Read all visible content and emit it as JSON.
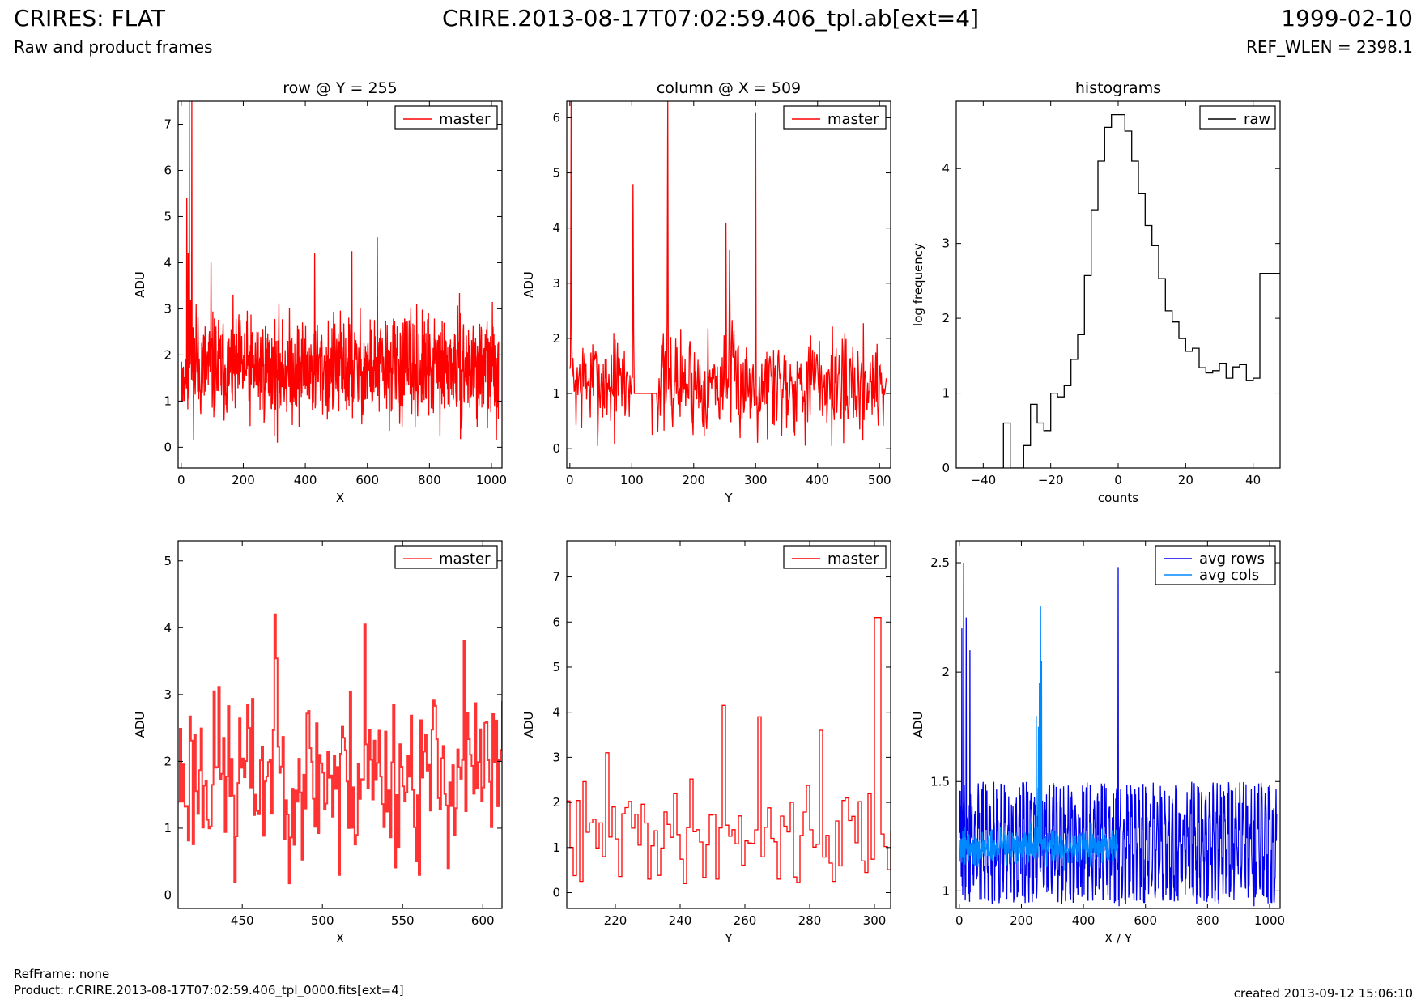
{
  "header": {
    "title": "CRIRES: FLAT",
    "subtitle": "Raw and product frames",
    "filename": "CRIRE.2013-08-17T07:02:59.406_tpl.ab[ext=4]",
    "date": "1999-02-10",
    "ref_wlen": "REF_WLEN = 2398.1"
  },
  "footer": {
    "refframe": "RefFrame: none",
    "product": "Product: r.CRIRE.2013-08-17T07:02:59.406_tpl_0000.fits[ext=4]",
    "created": "created 2013-09-12 15:06:10"
  },
  "colors": {
    "master": "#ff0000",
    "master_zoom": "#ff3333",
    "raw": "#000000",
    "avg_rows": "#0000ee",
    "avg_cols": "#0088ff"
  },
  "chart_data": [
    {
      "id": "p1",
      "type": "line",
      "title": "row @ Y = 255",
      "xlabel": "X",
      "ylabel": "ADU",
      "xlim": [
        -10,
        1034
      ],
      "ylim": [
        -0.45,
        7.5
      ],
      "xticks": [
        0,
        200,
        400,
        600,
        800,
        1000
      ],
      "yticks": [
        0,
        1,
        2,
        3,
        4,
        5,
        6,
        7
      ],
      "legend": "top-right",
      "series": [
        {
          "name": "master",
          "color": "#ff0000",
          "gen": {
            "x0": 0,
            "x1": 1023,
            "n": 1024,
            "base": 1.7,
            "amp": 0.9,
            "seed": 11,
            "spikes": [
              [
                3,
                1.0
              ],
              [
                6,
                1.0
              ],
              [
                10,
                1.0
              ],
              [
                14,
                1.9
              ],
              [
                18,
                5.4
              ],
              [
                22,
                4.2
              ],
              [
                26,
                7.5
              ],
              [
                30,
                3.2
              ],
              [
                34,
                7.5
              ],
              [
                38,
                2.6
              ],
              [
                48,
                3.1
              ],
              [
                96,
                4.0
              ],
              [
                310,
                0.1
              ],
              [
                430,
                4.2
              ],
              [
                550,
                4.25
              ],
              [
                632,
                4.55
              ],
              [
                1016,
                0.15
              ]
            ]
          }
        }
      ]
    },
    {
      "id": "p2",
      "type": "line",
      "title": "column @ X = 509",
      "xlabel": "Y",
      "ylabel": "ADU",
      "xlim": [
        -5,
        518
      ],
      "ylim": [
        -0.35,
        6.3
      ],
      "xticks": [
        0,
        100,
        200,
        300,
        400,
        500
      ],
      "yticks": [
        0,
        1,
        2,
        3,
        4,
        5,
        6
      ],
      "legend": "top-right",
      "series": [
        {
          "name": "master",
          "color": "#ff0000",
          "gen": {
            "x0": 0,
            "x1": 511,
            "n": 512,
            "base": 1.2,
            "amp": 0.75,
            "seed": 7,
            "spikes": [
              [
                2,
                6.3
              ],
              [
                102,
                4.8
              ],
              [
                158,
                6.3
              ],
              [
                300,
                6.1
              ],
              [
                252,
                4.1
              ],
              [
                258,
                3.6
              ],
              [
                133,
                0.25
              ],
              [
                442,
                0.1
              ],
              [
                468,
                0.35
              ]
            ],
            "flat": [
              [
                104,
                140,
                1.0
              ]
            ]
          }
        }
      ]
    },
    {
      "id": "p3",
      "type": "line",
      "title": "histograms",
      "xlabel": "counts",
      "ylabel": "log frequency",
      "xlim": [
        -48,
        48
      ],
      "ylim": [
        0,
        4.9
      ],
      "xticks": [
        -40,
        -20,
        0,
        20,
        40
      ],
      "yticks": [
        0,
        1,
        2,
        3,
        4
      ],
      "legend": "top-right",
      "series": [
        {
          "name": "raw",
          "color": "#000000",
          "step": true,
          "x": [
            -48,
            -36,
            -34,
            -32,
            -30,
            -28,
            -26,
            -24,
            -22,
            -20,
            -18,
            -16,
            -14,
            -12,
            -10,
            -8,
            -6,
            -4,
            -2,
            0,
            2,
            4,
            6,
            8,
            10,
            12,
            14,
            16,
            18,
            20,
            22,
            24,
            26,
            28,
            30,
            32,
            34,
            36,
            38,
            40,
            42,
            44,
            46
          ],
          "y": [
            0,
            0,
            0.6,
            0,
            0,
            0.3,
            0.85,
            0.6,
            0.5,
            1.0,
            0.95,
            1.1,
            1.45,
            1.78,
            2.57,
            3.45,
            4.1,
            4.55,
            4.72,
            4.72,
            4.5,
            4.1,
            3.67,
            3.24,
            2.97,
            2.53,
            2.1,
            1.95,
            1.73,
            1.56,
            1.6,
            1.34,
            1.27,
            1.3,
            1.4,
            1.2,
            1.35,
            1.38,
            1.17,
            1.2,
            2.6,
            2.6,
            2.6
          ]
        }
      ]
    },
    {
      "id": "p4",
      "type": "line",
      "title": "",
      "xlabel": "X",
      "ylabel": "ADU",
      "xlim": [
        410,
        612
      ],
      "ylim": [
        -0.2,
        5.3
      ],
      "xticks": [
        450,
        500,
        550,
        600
      ],
      "yticks": [
        0,
        1,
        2,
        3,
        4,
        5
      ],
      "legend": "top-right",
      "series": [
        {
          "name": "master",
          "color": "#ff3333",
          "step": true,
          "gen": {
            "x0": 410,
            "x1": 612,
            "n": 203,
            "base": 1.8,
            "amp": 1.0,
            "seed": 23,
            "spikes": [
              [
                470,
                4.2
              ],
              [
                526,
                4.05
              ],
              [
                588,
                3.8
              ],
              [
                432,
                3.05
              ],
              [
                445,
                0.2
              ],
              [
                510,
                0.3
              ],
              [
                560,
                0.3
              ]
            ]
          }
        }
      ]
    },
    {
      "id": "p5",
      "type": "line",
      "title": "",
      "xlabel": "Y",
      "ylabel": "ADU",
      "xlim": [
        205,
        305
      ],
      "ylim": [
        -0.35,
        7.8
      ],
      "xticks": [
        220,
        240,
        260,
        280,
        300
      ],
      "yticks": [
        0,
        1,
        2,
        3,
        4,
        5,
        6,
        7
      ],
      "legend": "top-right",
      "series": [
        {
          "name": "master",
          "color": "#ff0000",
          "step": true,
          "gen": {
            "x0": 205,
            "x1": 305,
            "n": 101,
            "base": 1.35,
            "amp": 0.85,
            "seed": 41,
            "spikes": [
              [
                217,
                3.1
              ],
              [
                253,
                4.15
              ],
              [
                264,
                3.9
              ],
              [
                283,
                3.6
              ],
              [
                300,
                6.1
              ],
              [
                301,
                6.1
              ],
              [
                209,
                0.25
              ],
              [
                270,
                0.3
              ],
              [
                287,
                0.25
              ]
            ]
          }
        }
      ]
    },
    {
      "id": "p6",
      "type": "line",
      "title": "",
      "xlabel": "X / Y",
      "ylabel": "ADU",
      "xlim": [
        -10,
        1034
      ],
      "ylim": [
        0.92,
        2.6
      ],
      "xticks": [
        0,
        200,
        400,
        600,
        800,
        1000
      ],
      "yticks": [
        1.0,
        1.5,
        2.0,
        2.5
      ],
      "legend": "top-right",
      "series": [
        {
          "name": "avg rows",
          "color": "#0000ee",
          "gen": {
            "x0": 0,
            "x1": 1023,
            "n": 1024,
            "base": 1.18,
            "amp": 0.28,
            "seed": 5,
            "osc": true,
            "spikes": [
              [
                14,
                2.5
              ],
              [
                8,
                2.2
              ],
              [
                22,
                2.25
              ],
              [
                34,
                2.1
              ],
              [
                512,
                2.48
              ],
              [
                515,
                0.93
              ],
              [
                950,
                0.93
              ]
            ]
          }
        },
        {
          "name": "avg cols",
          "color": "#0088ff",
          "gen": {
            "x0": 0,
            "x1": 511,
            "n": 512,
            "base": 1.2,
            "amp": 0.07,
            "seed": 9,
            "spikes": [
              [
                262,
                2.3
              ],
              [
                265,
                2.05
              ],
              [
                255,
                1.75
              ],
              [
                248,
                1.8
              ],
              [
                258,
                1.95
              ]
            ]
          }
        }
      ]
    }
  ]
}
